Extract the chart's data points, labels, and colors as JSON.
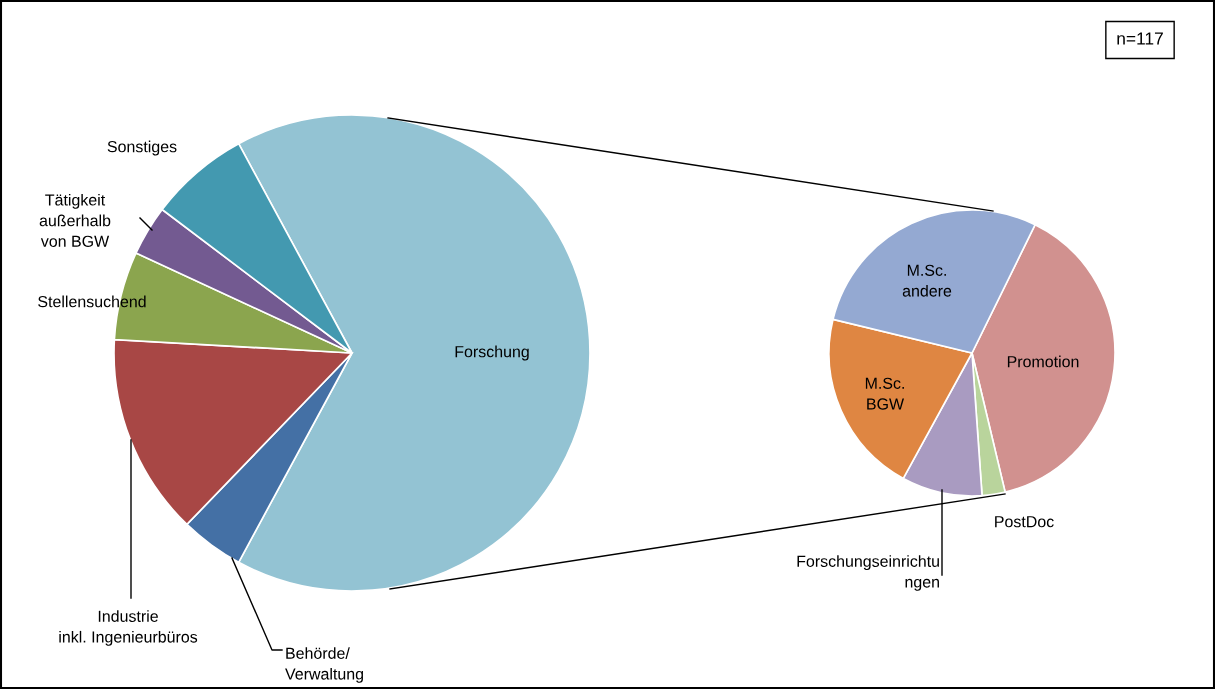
{
  "chart_data": [
    {
      "type": "pie",
      "categories": [
        "Forschung",
        "Behörde/\nVerwaltung",
        "Industrie\ninkl. Ingenieurbüros",
        "Stellensuchend",
        "Tätigkeit\naußerhalb\nvon BGW",
        "Sonstiges"
      ],
      "values": [
        65.8,
        4.3,
        13.7,
        6.0,
        3.4,
        6.8
      ],
      "colors": [
        "#93c3d3",
        "#4470a5",
        "#a84745",
        "#8ba54e",
        "#735a91",
        "#4399b0"
      ],
      "annotations": [
        "n=117"
      ]
    },
    {
      "type": "pie",
      "categories": [
        "Promotion",
        "PostDoc",
        "Forschungseinrichtu\nngen",
        "M.Sc.\nBGW",
        "M.Sc.\nandere"
      ],
      "values": [
        39.0,
        2.6,
        9.1,
        20.8,
        28.5
      ],
      "colors": [
        "#d1918f",
        "#b9d49c",
        "#a99bc1",
        "#df8642",
        "#94a9d2"
      ]
    }
  ]
}
